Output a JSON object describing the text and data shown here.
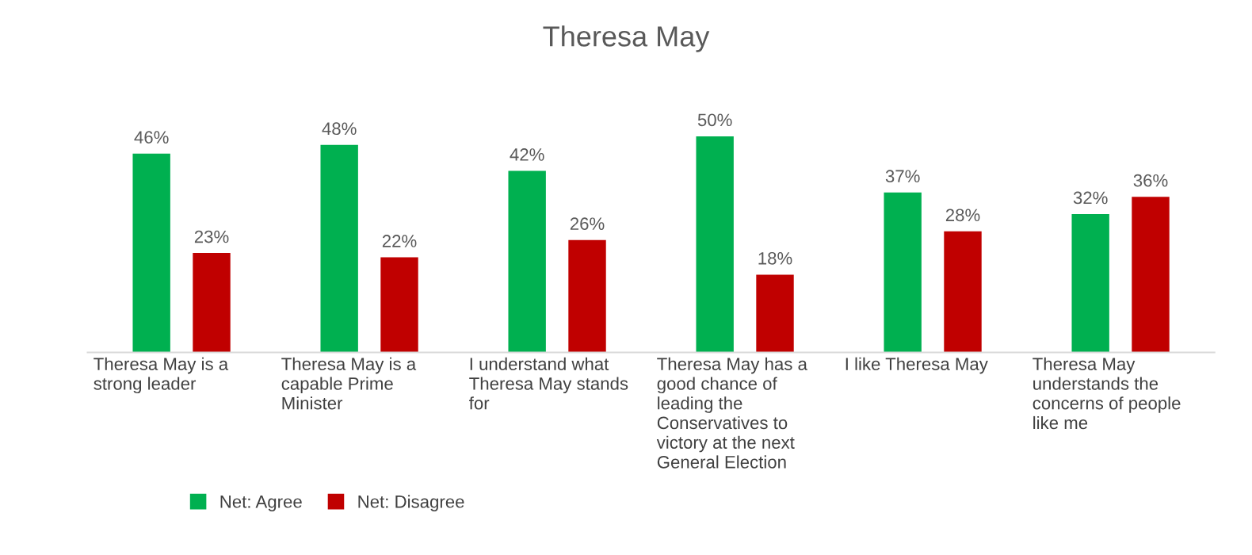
{
  "chart_data": {
    "type": "bar",
    "title": "Theresa May",
    "categories": [
      "Theresa May is a strong leader",
      "Theresa May is a capable Prime Minister",
      "I understand what Theresa May stands for",
      "Theresa May has a good chance of leading the Conservatives to victory at the next General Election",
      "I like Theresa May",
      "Theresa May understands the concerns of people like me"
    ],
    "series": [
      {
        "name": "Net: Agree",
        "color": "#00b050",
        "values": [
          46,
          48,
          42,
          50,
          37,
          32
        ],
        "value_labels": [
          "46%",
          "48%",
          "42%",
          "50%",
          "37%",
          "32%"
        ]
      },
      {
        "name": "Net: Disagree",
        "color": "#c00000",
        "values": [
          23,
          22,
          26,
          18,
          28,
          36
        ],
        "value_labels": [
          "23%",
          "22%",
          "26%",
          "18%",
          "28%",
          "36%"
        ]
      }
    ],
    "legend": "bottom"
  }
}
